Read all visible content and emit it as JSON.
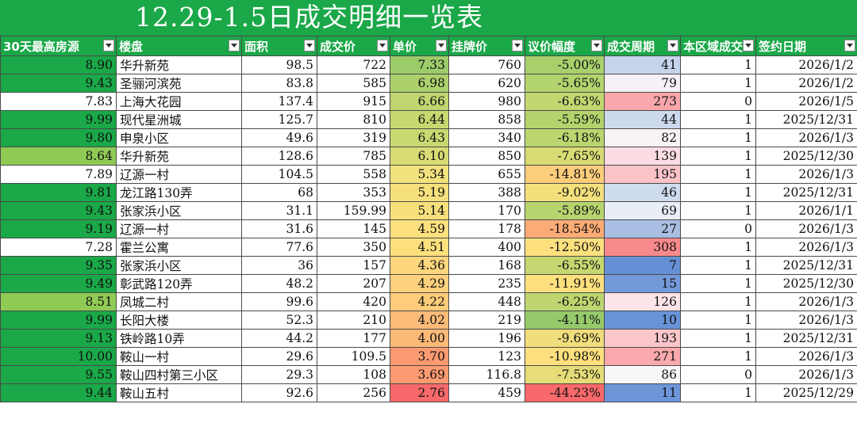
{
  "title": "12.29-1.5日成交明细一览表",
  "columns": [
    "30天最高房源",
    "楼盘",
    "面积",
    "成交价",
    "单价",
    "挂牌价",
    "议价幅度",
    "成交周期",
    "本区域成交",
    "签约日期"
  ],
  "rows": [
    [
      "8.90",
      "华升新苑",
      "98.5",
      "722",
      "7.33",
      "760",
      "-5.00%",
      "41",
      "1",
      "2026/1/2"
    ],
    [
      "9.43",
      "圣骊河滨苑",
      "83.8",
      "585",
      "6.98",
      "620",
      "-5.65%",
      "79",
      "1",
      "2026/1/2"
    ],
    [
      "7.83",
      "上海大花园",
      "137.4",
      "915",
      "6.66",
      "980",
      "-6.63%",
      "273",
      "0",
      "2026/1/5"
    ],
    [
      "9.99",
      "现代星洲城",
      "125.7",
      "810",
      "6.44",
      "858",
      "-5.59%",
      "44",
      "1",
      "2025/12/31"
    ],
    [
      "9.80",
      "申泉小区",
      "49.6",
      "319",
      "6.43",
      "340",
      "-6.18%",
      "82",
      "1",
      "2026/1/3"
    ],
    [
      "8.64",
      "华升新苑",
      "128.6",
      "785",
      "6.10",
      "850",
      "-7.65%",
      "139",
      "1",
      "2025/12/30"
    ],
    [
      "7.89",
      "辽源一村",
      "104.5",
      "558",
      "5.34",
      "655",
      "-14.81%",
      "195",
      "1",
      "2026/1/3"
    ],
    [
      "9.81",
      "龙江路130弄",
      "68",
      "353",
      "5.19",
      "388",
      "-9.02%",
      "46",
      "1",
      "2025/12/31"
    ],
    [
      "9.43",
      "张家浜小区",
      "31.1",
      "159.99",
      "5.14",
      "170",
      "-5.89%",
      "69",
      "1",
      "2026/1/1"
    ],
    [
      "9.19",
      "辽源一村",
      "31.6",
      "145",
      "4.59",
      "178",
      "-18.54%",
      "27",
      "0",
      "2026/1/3"
    ],
    [
      "7.28",
      "霍兰公寓",
      "77.6",
      "350",
      "4.51",
      "400",
      "-12.50%",
      "308",
      "1",
      "2026/1/3"
    ],
    [
      "9.35",
      "张家浜小区",
      "36",
      "157",
      "4.36",
      "168",
      "-6.55%",
      "7",
      "1",
      "2025/12/31"
    ],
    [
      "9.49",
      "彰武路120弄",
      "48.2",
      "207",
      "4.29",
      "235",
      "-11.91%",
      "15",
      "1",
      "2025/12/30"
    ],
    [
      "8.51",
      "凤城二村",
      "99.6",
      "420",
      "4.22",
      "448",
      "-6.25%",
      "126",
      "1",
      "2026/1/3"
    ],
    [
      "9.99",
      "长阳大楼",
      "52.3",
      "210",
      "4.02",
      "219",
      "-4.11%",
      "10",
      "1",
      "2026/1/3"
    ],
    [
      "9.13",
      "铁岭路10弄",
      "44.2",
      "177",
      "4.00",
      "196",
      "-9.69%",
      "193",
      "1",
      "2025/12/31"
    ],
    [
      "10.00",
      "鞍山一村",
      "29.6",
      "109.5",
      "3.70",
      "123",
      "-10.98%",
      "271",
      "1",
      "2026/1/3"
    ],
    [
      "9.55",
      "鞍山四村第三小区",
      "29.3",
      "108",
      "3.69",
      "116.8",
      "-7.53%",
      "86",
      "0",
      "2026/1/3"
    ],
    [
      "9.44",
      "鞍山五村",
      "92.6",
      "256",
      "2.76",
      "459",
      "-44.23%",
      "11",
      "1",
      "2025/12/29"
    ]
  ],
  "cell_colors": {
    "col0": [
      "#1aa848",
      "#1aa848",
      "#ffffff",
      "#1aa848",
      "#1aa848",
      "#8fcb54",
      "#ffffff",
      "#1aa848",
      "#1aa848",
      "#1aa848",
      "#ffffff",
      "#1aa848",
      "#1aa848",
      "#8fcb54",
      "#1aa848",
      "#1aa848",
      "#1aa848",
      "#1aa848",
      "#1aa848"
    ],
    "col4": [
      "#9ccb6a",
      "#acd06c",
      "#c1d66f",
      "#c8d870",
      "#c9d870",
      "#d8dc74",
      "#f2e27d",
      "#f6e07c",
      "#f7e07c",
      "#fde07e",
      "#fde07e",
      "#fed67d",
      "#fed17c",
      "#fecc7b",
      "#fdba78",
      "#fdb977",
      "#fc9a71",
      "#fc9a71",
      "#f8696b"
    ],
    "col6": [
      "#a8d06c",
      "#b2d36d",
      "#c2d770",
      "#b4d36d",
      "#bcd66f",
      "#d8dc74",
      "#fccd7b",
      "#f3e07c",
      "#b8d46e",
      "#fbab75",
      "#fde07e",
      "#c4d770",
      "#fde07e",
      "#bed56f",
      "#96c96a",
      "#f0de7c",
      "#fde07e",
      "#e6dc78",
      "#f8696b"
    ],
    "col7": [
      "#c6d4eb",
      "#f7f0f7",
      "#f9a7aa",
      "#cdd9ed",
      "#f9f3f6",
      "#fbdde3",
      "#fbc3c7",
      "#cfdbee",
      "#e9edf6",
      "#a9bee3",
      "#f8898c",
      "#6690d6",
      "#7399d9",
      "#fde4e9",
      "#6993d7",
      "#fbc7cb",
      "#f9a9ac",
      "#f9f6f9",
      "#6d95d8"
    ]
  }
}
